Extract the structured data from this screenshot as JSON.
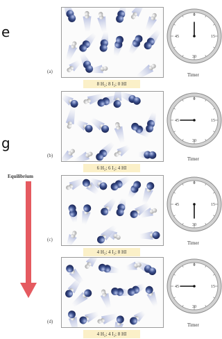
{
  "side_text": {
    "left_fragments": [
      "e",
      "g"
    ]
  },
  "equilibrium_label": "Equilibrium",
  "colors": {
    "arrow": "#e55a60",
    "molecule_blue": "#3b4f8c",
    "molecule_white": "#e4e4e4",
    "caption_bg": "#fbf0c8"
  },
  "panels": [
    {
      "letter": "(a)",
      "caption": "8 H₂; 8 I₂; 0 HI",
      "timer_label": "Timer",
      "clock_labels": [
        "0",
        "15",
        "30",
        "45"
      ],
      "elapsed_seconds": 0,
      "molecules": {
        "I2": 8,
        "H2": 8,
        "HI": 0
      }
    },
    {
      "letter": "(b)",
      "caption": "6 H₂; 6 I₂; 4 HI",
      "timer_label": "Timer",
      "clock_labels": [
        "0",
        "15",
        "30",
        "45"
      ],
      "elapsed_seconds": 45,
      "molecules": {
        "I2": 6,
        "H2": 6,
        "HI": 4
      }
    },
    {
      "letter": "(c)",
      "caption": "4 H₂; 4 I₂; 8 HI",
      "timer_label": "Timer",
      "clock_labels": [
        "0",
        "15",
        "30",
        "45"
      ],
      "elapsed_seconds": 30,
      "molecules": {
        "I2": 4,
        "H2": 4,
        "HI": 8
      }
    },
    {
      "letter": "(d)",
      "caption": "4 H₂; 4 I₂; 8 HI",
      "timer_label": "Timer",
      "clock_labels": [
        "0",
        "15",
        "30",
        "45"
      ],
      "elapsed_seconds": 45,
      "molecules": {
        "I2": 4,
        "H2": 4,
        "HI": 8
      }
    }
  ]
}
